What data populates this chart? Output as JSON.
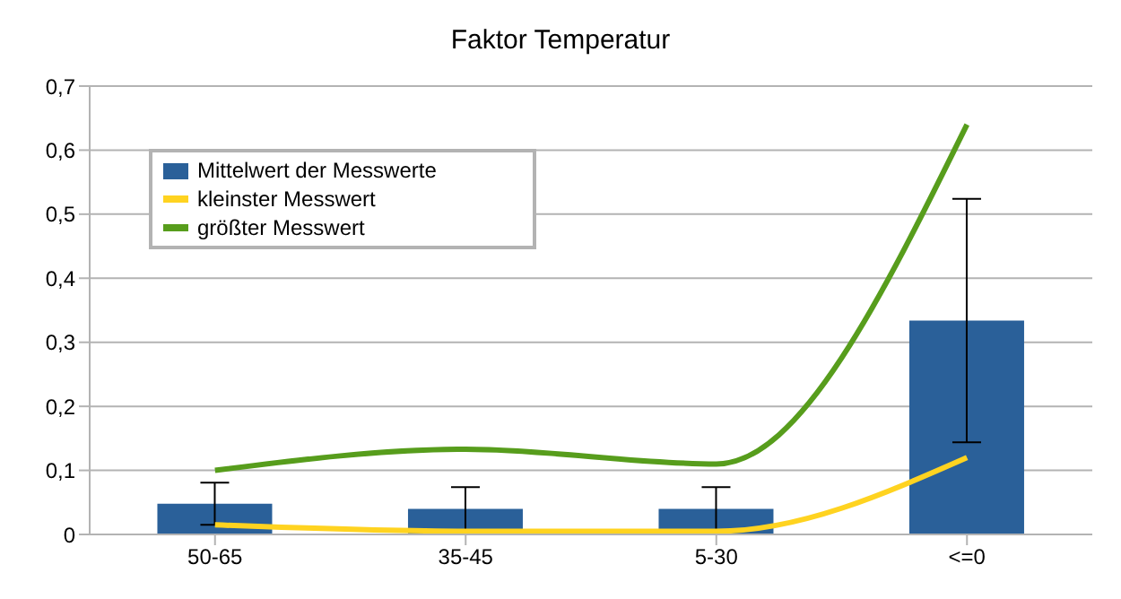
{
  "chart_data": {
    "type": "bar",
    "title": "Faktor Temperatur",
    "categories": [
      "50-65",
      "35-45",
      "5-30",
      "<=0"
    ],
    "series": [
      {
        "name": "Mittelwert der Messwerte",
        "color": "#2a6099",
        "values": [
          0.048,
          0.04,
          0.04,
          0.334
        ],
        "errors": [
          0.033,
          0.034,
          0.034,
          0.19
        ]
      },
      {
        "name": "kleinster Messwert",
        "type": "line",
        "color": "#ffd320",
        "values": [
          0.015,
          0.005,
          0.005,
          0.12
        ]
      },
      {
        "name": "größter Messwert",
        "type": "line",
        "color": "#579d1c",
        "values": [
          0.1,
          0.133,
          0.11,
          0.64
        ]
      }
    ],
    "ylim": [
      0,
      0.7
    ],
    "yticks": [
      0,
      {
        "value": 0.1,
        "label": "0,1"
      },
      {
        "value": 0.2,
        "label": "0,2"
      },
      {
        "value": 0.3,
        "label": "0,3"
      },
      {
        "value": 0.4,
        "label": "0,4"
      },
      {
        "value": 0.5,
        "label": "0,5"
      },
      {
        "value": 0.6,
        "label": "0,6"
      },
      {
        "value": 0.7,
        "label": "0,7"
      }
    ],
    "grid": "y",
    "legend": "top left",
    "marker": "none"
  }
}
